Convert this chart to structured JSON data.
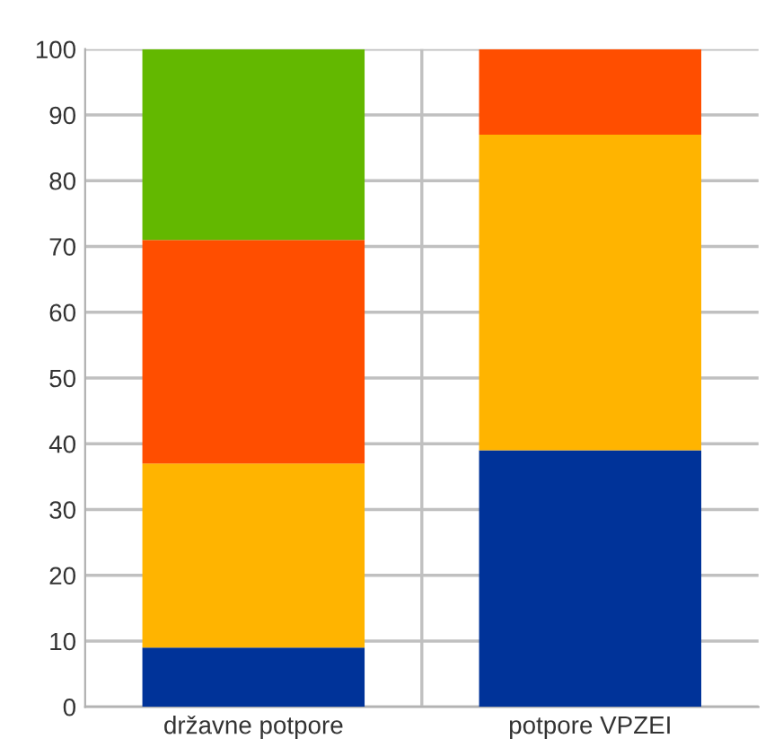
{
  "chart_data": {
    "type": "bar",
    "stacked": true,
    "categories": [
      "državne potpore",
      "potpore VPZEI"
    ],
    "series": [
      {
        "color": "#003399",
        "values": [
          9,
          39
        ]
      },
      {
        "color": "#ffb400",
        "values": [
          28,
          48
        ]
      },
      {
        "color": "#ff4e00",
        "values": [
          34,
          13
        ]
      },
      {
        "color": "#63b800",
        "values": [
          29,
          0
        ]
      }
    ],
    "ylim": [
      0,
      100
    ],
    "yticks": [
      0,
      10,
      20,
      30,
      40,
      50,
      60,
      70,
      80,
      90,
      100
    ],
    "grid": true,
    "legend": false
  }
}
